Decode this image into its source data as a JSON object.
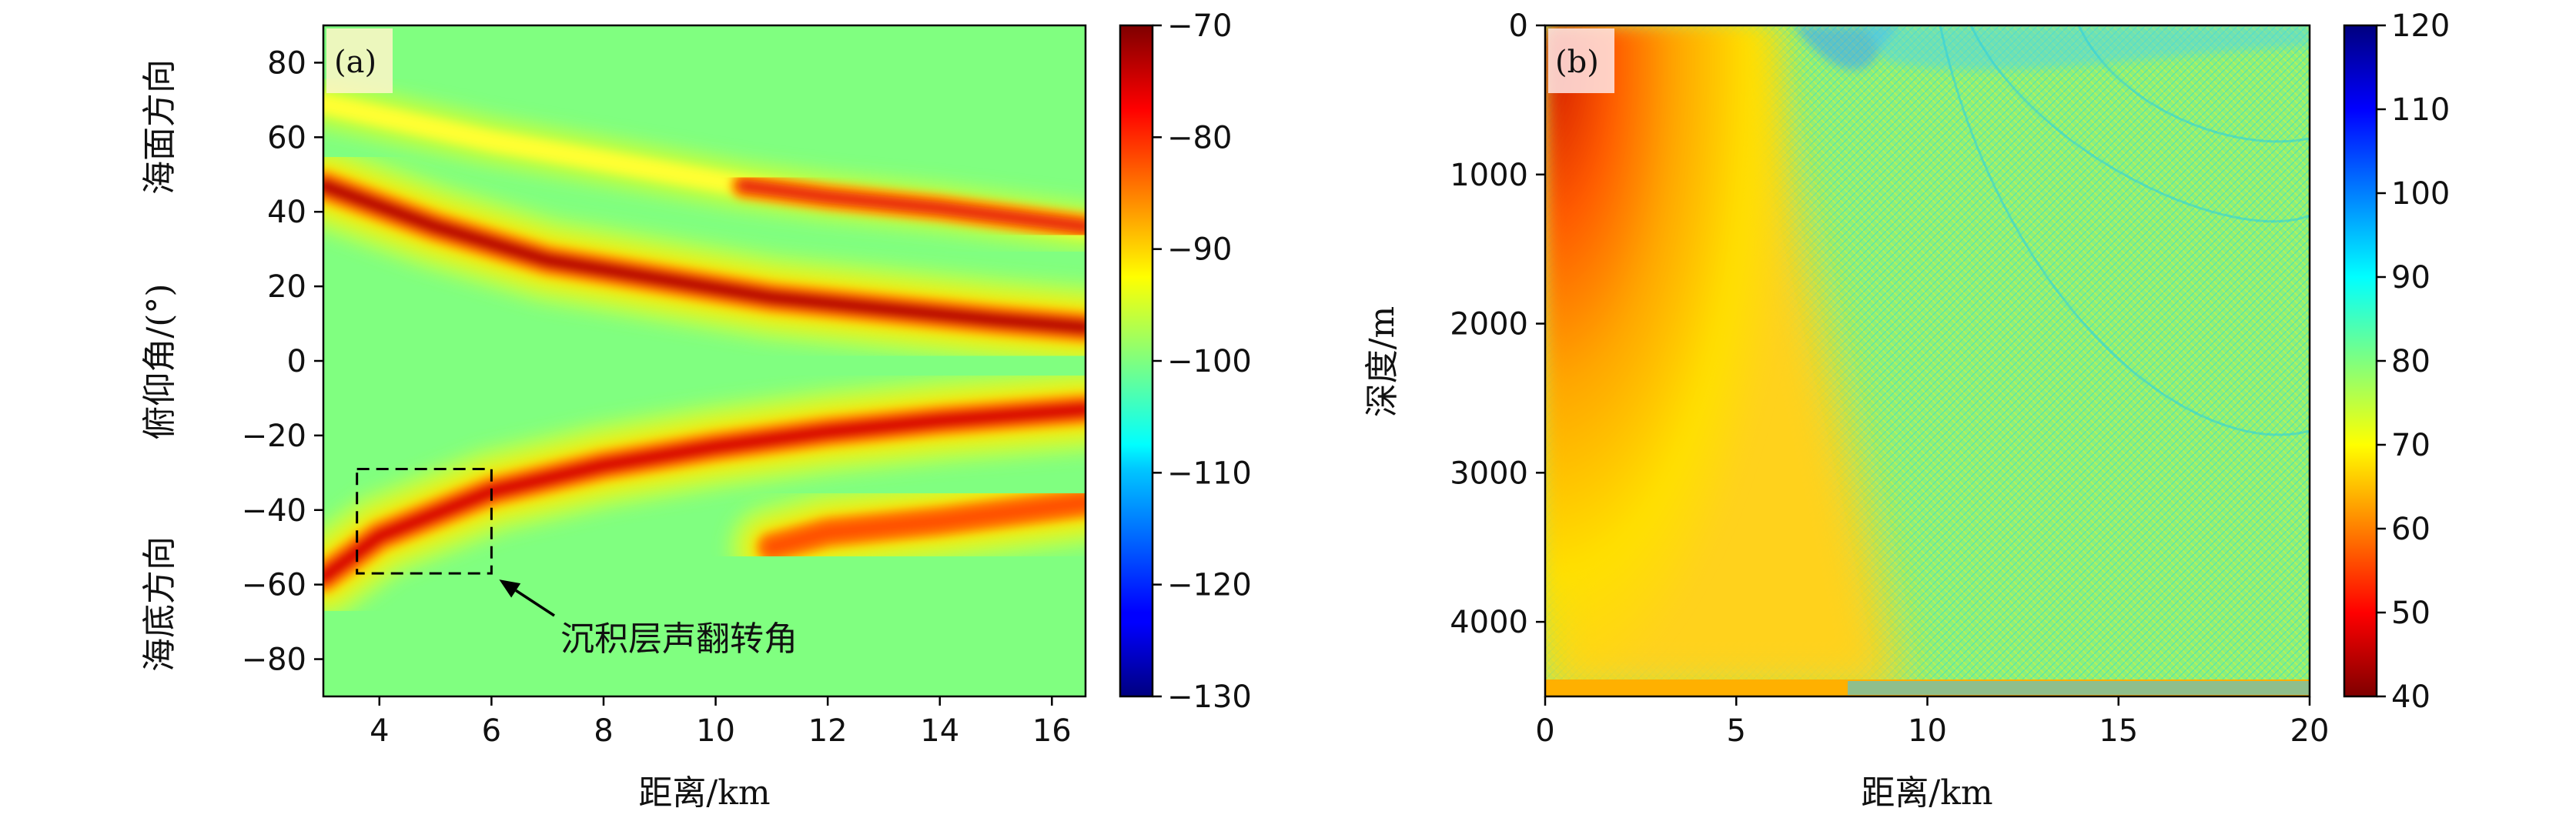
{
  "chart_data": [
    {
      "type": "heatmap",
      "panel_label": "(a)",
      "xlabel": "距离/km",
      "ylabel": "俯仰角/(°)",
      "ylabel_top": "海面方向",
      "ylabel_bottom": "海底方向",
      "xlim": [
        3,
        16.6
      ],
      "ylim": [
        -90,
        90
      ],
      "xticks": [
        4,
        6,
        8,
        10,
        12,
        14,
        16
      ],
      "yticks": [
        80,
        60,
        40,
        20,
        0,
        -20,
        -40,
        -60,
        -80
      ],
      "colorbar": {
        "ticks": [
          -70,
          -80,
          -90,
          -100,
          -110,
          -120,
          -130
        ],
        "range": [
          -130,
          -70
        ],
        "colormap": "jet"
      },
      "background_value": -100,
      "ridges": [
        {
          "name": "upper-main",
          "x": [
            3,
            5,
            7,
            9,
            11,
            13,
            15,
            16.6
          ],
          "y": [
            47,
            36,
            27,
            22,
            17,
            14,
            11,
            9
          ],
          "value": -73
        },
        {
          "name": "upper-secondary",
          "x": [
            3,
            6,
            9,
            10.5,
            12,
            14,
            16.6
          ],
          "y": [
            69,
            59,
            51,
            47,
            44,
            41,
            36
          ],
          "value": -88,
          "strong_from_x": 10.5
        },
        {
          "name": "lower-main",
          "x": [
            3,
            4,
            6,
            8,
            10,
            12,
            14,
            16.6
          ],
          "y": [
            -58,
            -47,
            -35,
            -28,
            -23,
            -19,
            -16,
            -13
          ],
          "value": -75
        },
        {
          "name": "lower-secondary",
          "x": [
            11,
            12,
            14,
            16.6
          ],
          "y": [
            -50,
            -46,
            -43,
            -38
          ],
          "value": -82
        }
      ],
      "annotation": {
        "text": "沉积层声翻转角",
        "box_x": [
          3.6,
          6.0
        ],
        "box_y": [
          -57,
          -29
        ]
      }
    },
    {
      "type": "heatmap",
      "panel_label": "(b)",
      "xlabel": "距离/km",
      "ylabel": "深度/m",
      "xlim": [
        0,
        20
      ],
      "ylim": [
        4500,
        0
      ],
      "xticks": [
        0,
        5,
        10,
        15,
        20
      ],
      "yticks": [
        0,
        1000,
        2000,
        3000,
        4000
      ],
      "colorbar": {
        "ticks": [
          120,
          110,
          100,
          90,
          80,
          70,
          60,
          50,
          40
        ],
        "range": [
          40,
          120
        ],
        "colormap": "jet_r"
      },
      "background_value": 78
    }
  ]
}
